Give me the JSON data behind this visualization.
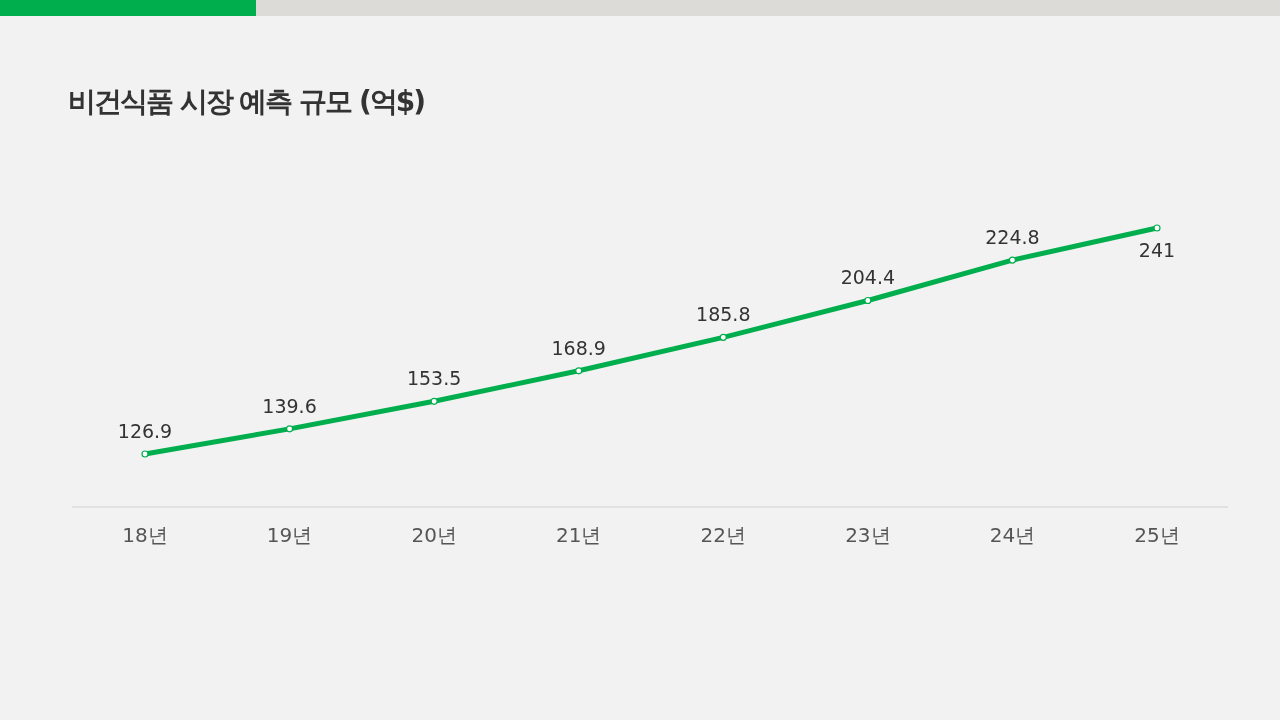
{
  "chart_data": {
    "type": "line",
    "title": "비건식품 시장 예측 규모 (억$)",
    "categories": [
      "18년",
      "19년",
      "20년",
      "21년",
      "22년",
      "23년",
      "24년",
      "25년"
    ],
    "values": [
      126.9,
      139.6,
      153.5,
      168.9,
      185.8,
      204.4,
      224.8,
      241
    ],
    "color": "#00ae4d",
    "marker": "circle",
    "data_labels": true
  }
}
